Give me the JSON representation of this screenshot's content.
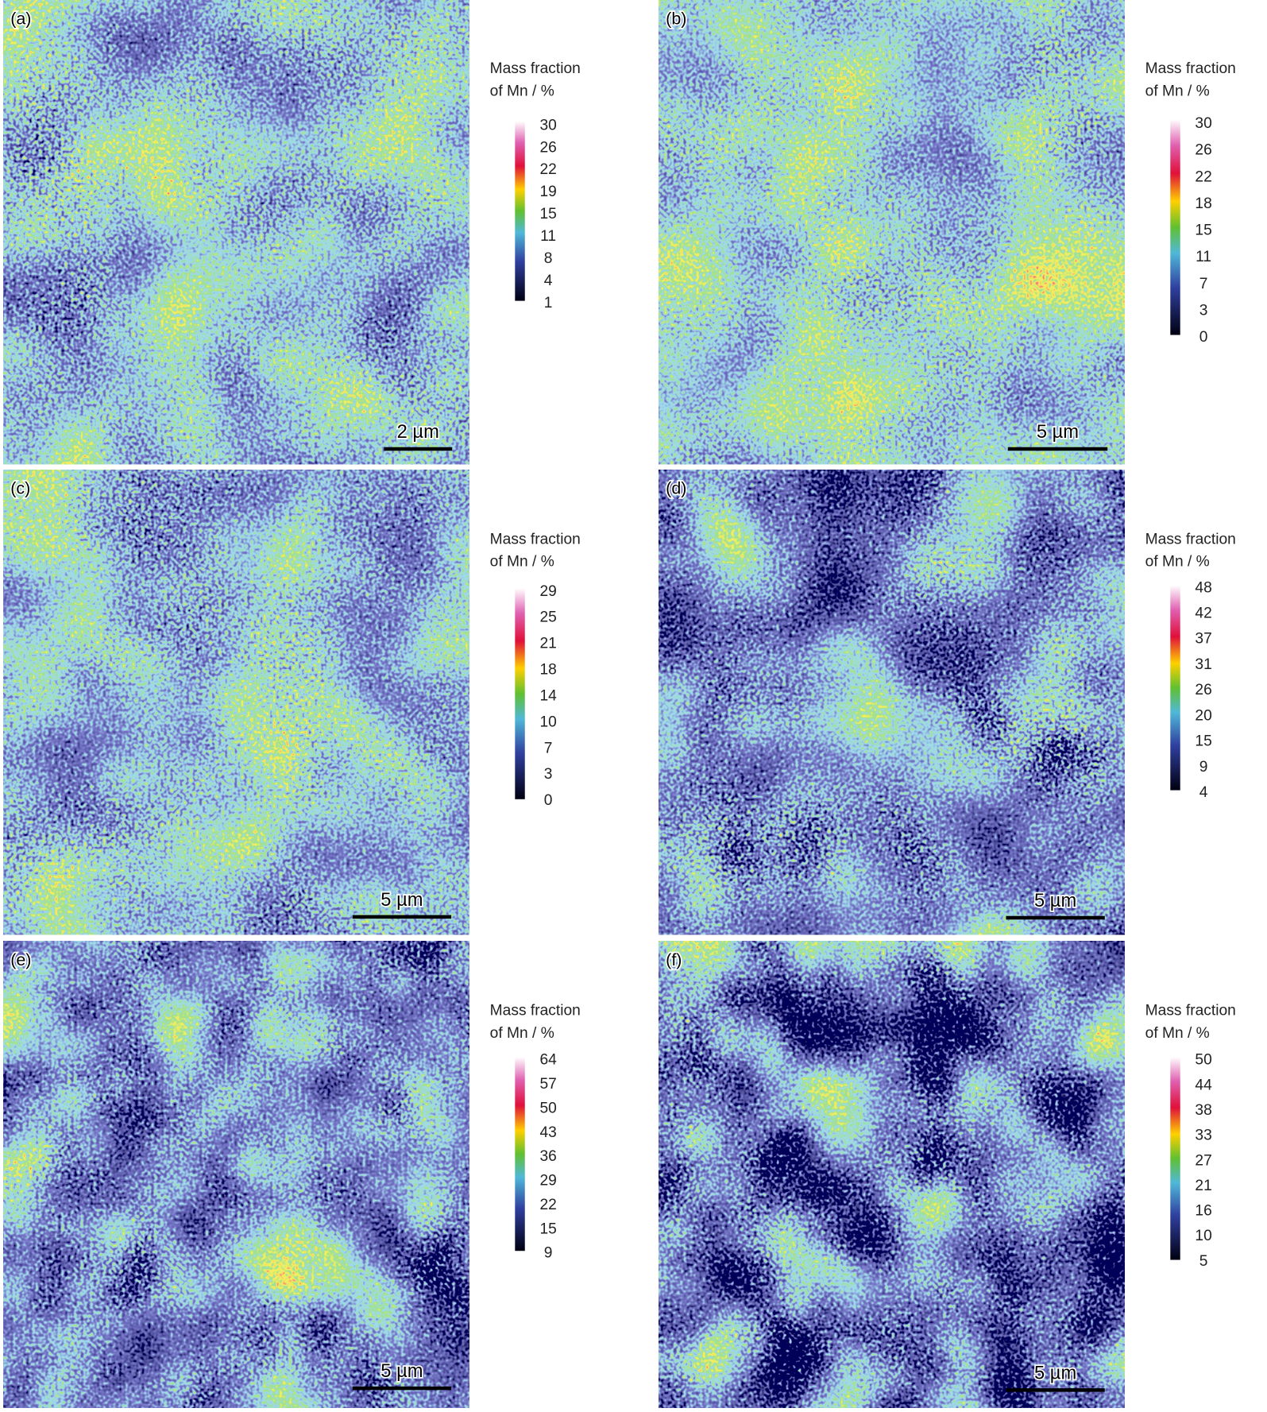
{
  "panels": [
    {
      "label": "(a)",
      "colorbar_title": [
        "Mass fraction",
        "of Mn / %"
      ],
      "ticks": [
        30,
        26,
        22,
        19,
        15,
        11,
        8,
        4,
        1
      ],
      "scale_bar": "2 µm"
    },
    {
      "label": "(b)",
      "colorbar_title": [
        "Mass fraction",
        "of Mn / %"
      ],
      "ticks": [
        30,
        26,
        22,
        18,
        15,
        11,
        7,
        3,
        0
      ],
      "scale_bar": "5 µm"
    },
    {
      "label": "(c)",
      "colorbar_title": [
        "Mass fraction",
        "of Mn / %"
      ],
      "ticks": [
        29,
        25,
        21,
        18,
        14,
        10,
        7,
        3,
        0
      ],
      "scale_bar": "5 µm"
    },
    {
      "label": "(d)",
      "colorbar_title": [
        "Mass fraction",
        "of Mn / %"
      ],
      "ticks": [
        48,
        42,
        37,
        31,
        26,
        20,
        15,
        9,
        4
      ],
      "scale_bar": "5 µm"
    },
    {
      "label": "(e)",
      "colorbar_title": [
        "Mass fraction",
        "of Mn / %"
      ],
      "ticks": [
        64,
        57,
        50,
        43,
        36,
        29,
        22,
        15,
        9
      ],
      "scale_bar": "5 µm"
    },
    {
      "label": "(f)",
      "colorbar_title": [
        "Mass fraction",
        "of Mn / %"
      ],
      "ticks": [
        50,
        44,
        38,
        33,
        27,
        21,
        16,
        10,
        5
      ],
      "scale_bar": "5 µm"
    }
  ]
}
